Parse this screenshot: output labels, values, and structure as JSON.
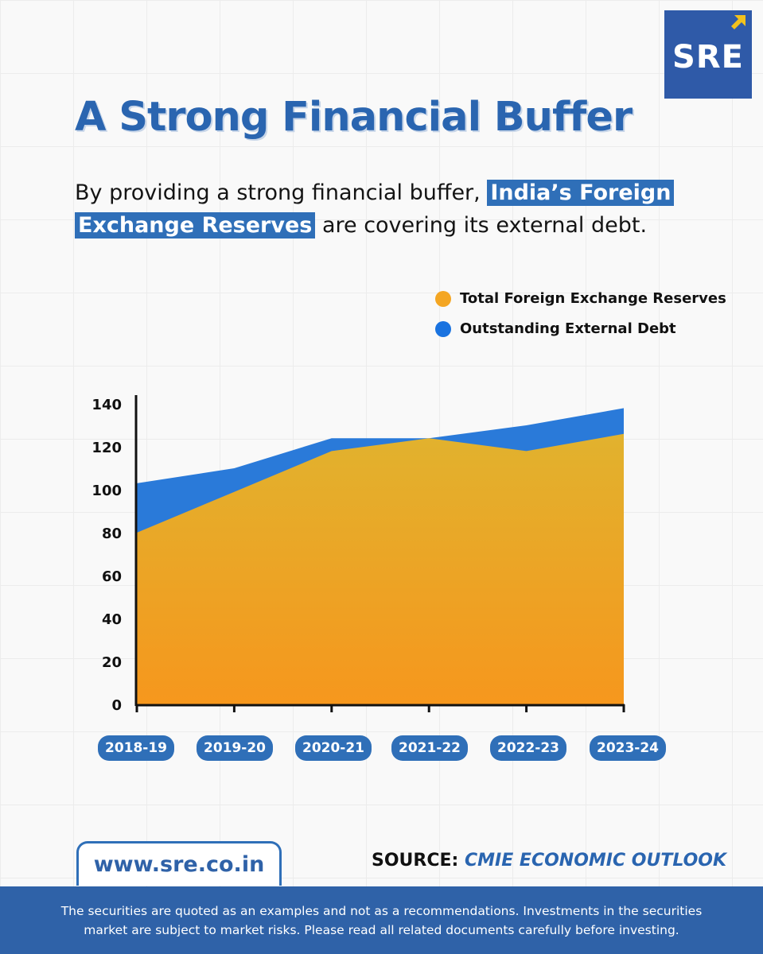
{
  "brand": {
    "logo_text": "SRE",
    "website": "www.sre.co.in"
  },
  "header": {
    "title": "A Strong Financial Buffer",
    "subtitle_pre": "By providing a strong financial buffer, ",
    "subtitle_highlight": "India’s Foreign Exchange Reserves",
    "subtitle_post": " are covering its external debt."
  },
  "source": {
    "label": "SOURCE:",
    "value": "CMIE ECONOMIC OUTLOOK"
  },
  "disclaimer": {
    "line1": "The securities are quoted as an examples and not as a recommendations. Investments in the securities",
    "line2": "market are subject to market risks. Please read all related documents carefully before investing."
  },
  "colors": {
    "brand_blue": "#2f6fb8",
    "reserves_top": "#e1b22e",
    "reserves_bottom": "#f6971d",
    "debt": "#2a7ad9"
  },
  "chart_data": {
    "type": "area",
    "categories": [
      "2018-19",
      "2019-20",
      "2020-21",
      "2021-22",
      "2022-23",
      "2023-24"
    ],
    "series": [
      {
        "name": "Total Foreign Exchange Reserves",
        "values": [
          80,
          99,
          118,
          124,
          118,
          126
        ],
        "color": "#f4a623"
      },
      {
        "name": "Outstanding External Debt",
        "values": [
          103,
          110,
          124,
          124,
          130,
          138
        ],
        "color": "#2a7ad9"
      }
    ],
    "yticks": [
      0,
      20,
      40,
      60,
      80,
      100,
      120,
      140
    ],
    "ylim": [
      0,
      140
    ],
    "legend": "top-right"
  }
}
